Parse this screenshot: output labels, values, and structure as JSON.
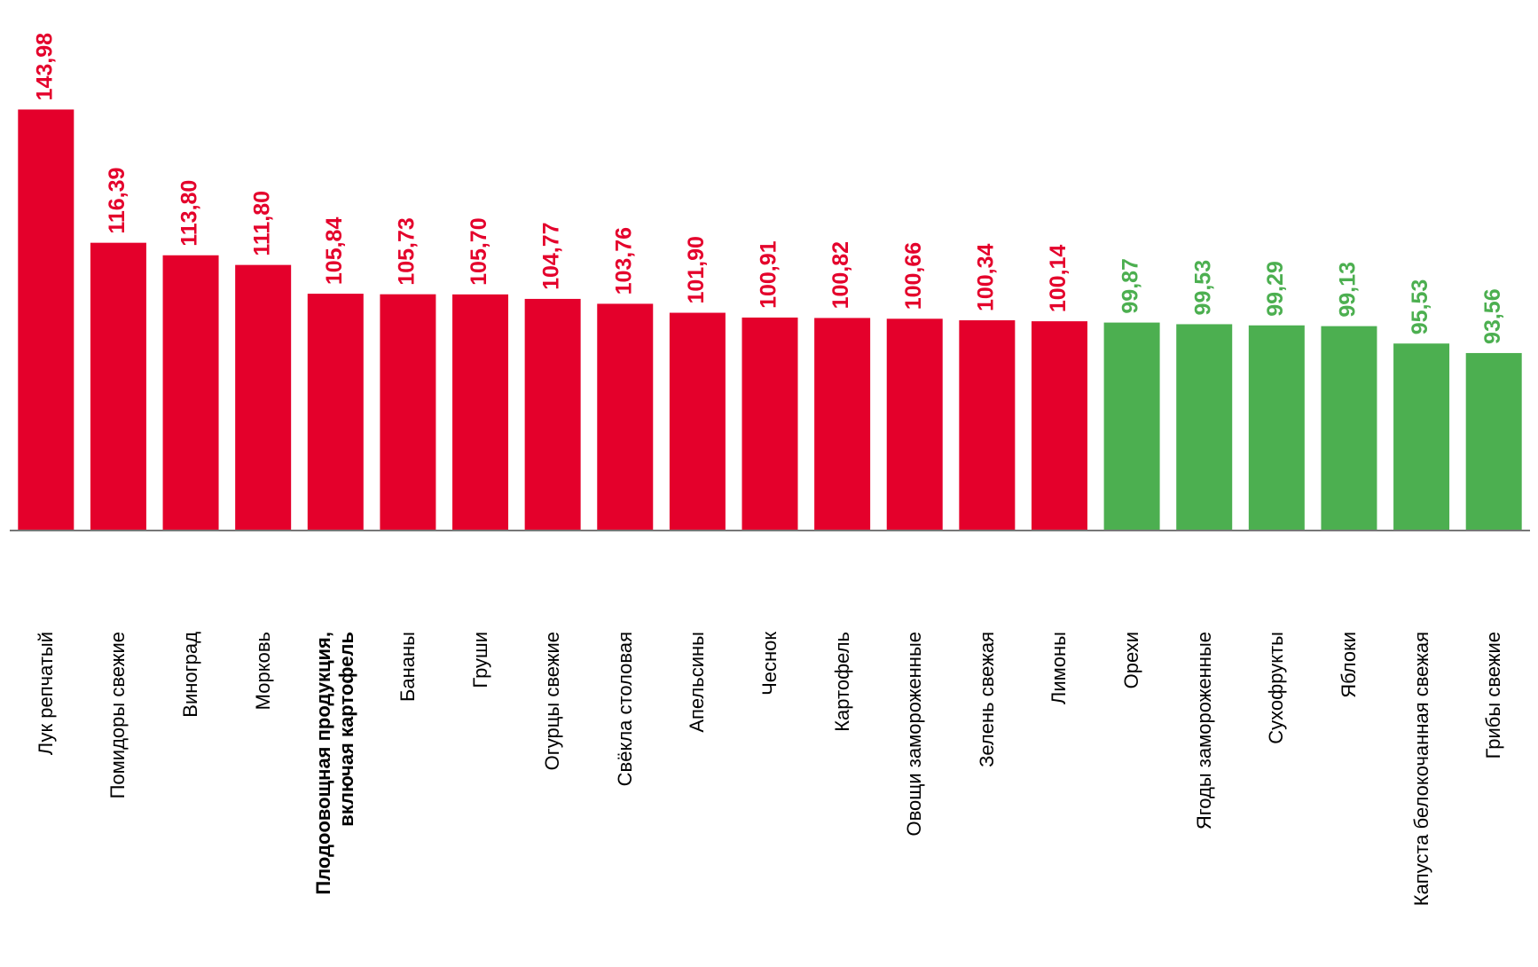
{
  "chart_data": {
    "type": "bar",
    "categories": [
      "Лук репчатый",
      "Помидоры свежие",
      "Виноград",
      "Морковь",
      "Плодоовощная продукция,\nвключая картофель",
      "Бананы",
      "Груши",
      "Огурцы свежие",
      "Свёкла столовая",
      "Апельсины",
      "Чеснок",
      "Картофель",
      "Овощи замороженные",
      "Зелень свежая",
      "Лимоны",
      "Орехи",
      "Ягоды замороженные",
      "Сухофрукты",
      "Яблоки",
      "Капуста белокочанная свежая",
      "Грибы свежие"
    ],
    "values": [
      143.98,
      116.39,
      113.8,
      111.8,
      105.84,
      105.73,
      105.7,
      104.77,
      103.76,
      101.9,
      100.91,
      100.82,
      100.66,
      100.34,
      100.14,
      99.87,
      99.53,
      99.29,
      99.13,
      95.53,
      93.56
    ],
    "value_labels": [
      "143,98",
      "116,39",
      "113,80",
      "111,80",
      "105,84",
      "105,73",
      "105,70",
      "104,77",
      "103,76",
      "101,90",
      "100,91",
      "100,82",
      "100,66",
      "100,34",
      "100,14",
      "99,87",
      "99,53",
      "99,29",
      "99,13",
      "95,53",
      "93,56"
    ],
    "colors": [
      "#e4002b",
      "#e4002b",
      "#e4002b",
      "#e4002b",
      "#e4002b",
      "#e4002b",
      "#e4002b",
      "#e4002b",
      "#e4002b",
      "#e4002b",
      "#e4002b",
      "#e4002b",
      "#e4002b",
      "#e4002b",
      "#e4002b",
      "#4caf50",
      "#4caf50",
      "#4caf50",
      "#4caf50",
      "#4caf50",
      "#4caf50"
    ],
    "ylim": [
      57,
      147
    ]
  }
}
